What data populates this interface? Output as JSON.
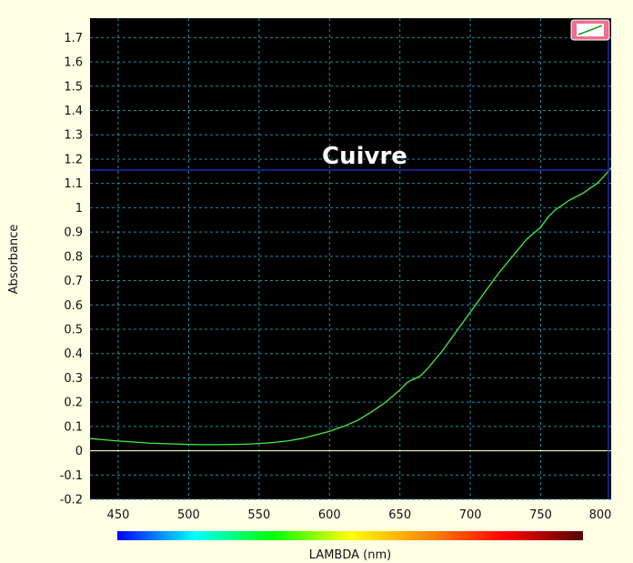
{
  "colors": {
    "background": "#ffffe5",
    "plot_background": "#000000",
    "grid": "#1e8fa5",
    "curve": "#44ee44",
    "zero_line": "#f5f5b0",
    "cursor": "#2233dd",
    "button_fill": "#ee6e8e"
  },
  "toolbar": {
    "chart_button_icon": "line-chart-icon"
  },
  "spectrum_bar": {
    "stops": [
      "#0000ff",
      "#00ffff",
      "#00ff00",
      "#ffff00",
      "#ff8800",
      "#ff0000",
      "#550000"
    ]
  },
  "cursor": {
    "x": 798,
    "y": 1.155
  },
  "chart_data": {
    "type": "line",
    "title": "Cuivre",
    "xlabel": "LAMBDA (nm)",
    "ylabel": "Absorbance",
    "xlim": [
      430,
      800
    ],
    "ylim": [
      -0.2,
      1.78
    ],
    "xticks": [
      450,
      500,
      550,
      600,
      650,
      700,
      750,
      800
    ],
    "yticks": [
      -0.2,
      -0.1,
      0,
      0.1,
      0.2,
      0.3,
      0.4,
      0.5,
      0.6,
      0.7,
      0.8,
      0.9,
      1,
      1.1,
      1.2,
      1.3,
      1.4,
      1.5,
      1.6,
      1.7
    ],
    "grid": true,
    "series": [
      {
        "x": [
          430,
          440,
          450,
          460,
          470,
          480,
          490,
          500,
          510,
          520,
          530,
          540,
          550,
          560,
          570,
          580,
          590,
          600,
          610,
          620,
          630,
          640,
          650,
          655,
          658,
          662,
          665,
          670,
          680,
          690,
          700,
          710,
          720,
          730,
          740,
          750,
          755,
          760,
          770,
          780,
          790,
          795,
          798,
          800
        ],
        "y": [
          0.05,
          0.045,
          0.04,
          0.036,
          0.032,
          0.03,
          0.028,
          0.026,
          0.025,
          0.025,
          0.026,
          0.027,
          0.03,
          0.034,
          0.04,
          0.05,
          0.065,
          0.08,
          0.1,
          0.125,
          0.16,
          0.2,
          0.25,
          0.28,
          0.29,
          0.3,
          0.31,
          0.34,
          0.41,
          0.49,
          0.57,
          0.65,
          0.73,
          0.8,
          0.87,
          0.92,
          0.96,
          0.99,
          1.03,
          1.06,
          1.1,
          1.13,
          1.15,
          1.165
        ]
      }
    ]
  }
}
